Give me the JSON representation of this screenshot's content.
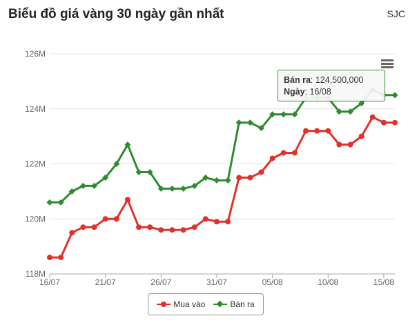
{
  "header": {
    "title": "Biểu đồ giá vàng 30 ngày gần nhất",
    "brand": "SJC"
  },
  "chart_data": {
    "type": "line",
    "x": [
      "16/07",
      "17/07",
      "18/07",
      "19/07",
      "20/07",
      "21/07",
      "22/07",
      "23/07",
      "24/07",
      "25/07",
      "26/07",
      "27/07",
      "28/07",
      "29/07",
      "30/07",
      "31/07",
      "01/08",
      "02/08",
      "03/08",
      "04/08",
      "05/08",
      "06/08",
      "07/08",
      "08/08",
      "09/08",
      "10/08",
      "11/08",
      "12/08",
      "13/08",
      "14/08",
      "15/08",
      "16/08"
    ],
    "x_tick_labels": [
      "16/07",
      "21/07",
      "26/07",
      "31/07",
      "05/08",
      "10/08",
      "15/08"
    ],
    "y_tick_labels": [
      "118M",
      "120M",
      "122M",
      "124M",
      "126M"
    ],
    "ylim": [
      118000000,
      126000000
    ],
    "grid": true,
    "legend_position": "bottom",
    "series": [
      {
        "name": "Mua vào",
        "color": "#e0312b",
        "marker": "circle",
        "values": [
          118600000,
          118600000,
          119500000,
          119700000,
          119700000,
          120000000,
          120000000,
          120700000,
          119700000,
          119700000,
          119600000,
          119600000,
          119600000,
          119700000,
          120000000,
          119900000,
          119900000,
          121500000,
          121500000,
          121700000,
          122200000,
          122400000,
          122400000,
          123200000,
          123200000,
          123200000,
          122700000,
          122700000,
          123000000,
          123700000,
          123500000,
          123500000
        ]
      },
      {
        "name": "Bán ra",
        "color": "#2e8b2e",
        "marker": "diamond",
        "values": [
          120600000,
          120600000,
          121000000,
          121200000,
          121200000,
          121500000,
          122000000,
          122700000,
          121700000,
          121700000,
          121100000,
          121100000,
          121100000,
          121200000,
          121500000,
          121400000,
          121400000,
          123500000,
          123500000,
          123300000,
          123800000,
          123800000,
          123800000,
          124400000,
          124400000,
          124400000,
          123900000,
          123900000,
          124200000,
          124700000,
          124500000,
          124500000
        ]
      }
    ]
  },
  "tooltip": {
    "line1_label": "Bán ra",
    "line1_value": ": 124,500,000",
    "line2_label": "Ngày",
    "line2_value": ": 16/08"
  }
}
